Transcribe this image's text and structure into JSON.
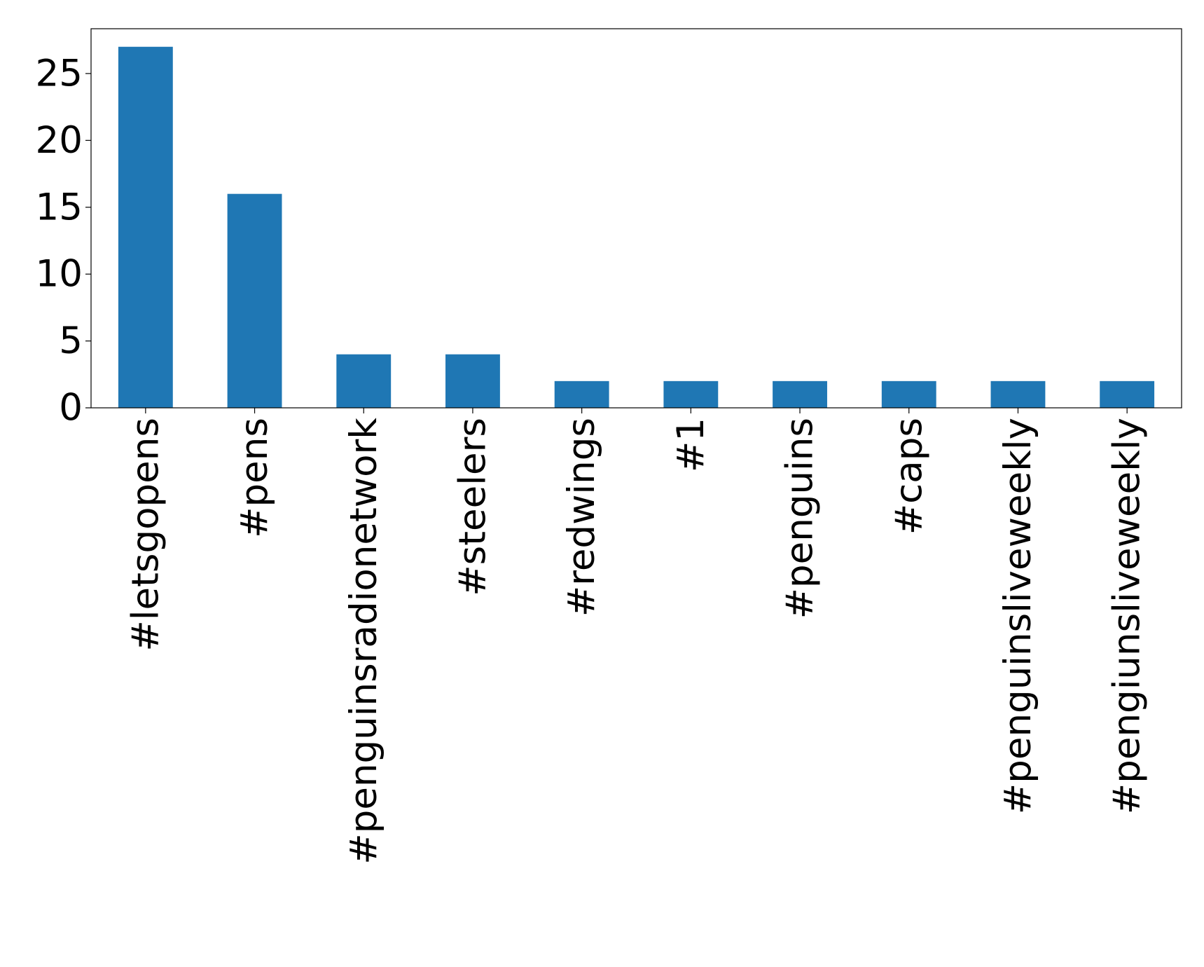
{
  "chart_data": {
    "type": "bar",
    "categories": [
      "#letsgopens",
      "#pens",
      "#penguinsradionetwork",
      "#steelers",
      "#redwings",
      "#1",
      "#penguins",
      "#caps",
      "#penguinsliveweekly",
      "#pengiunsliveweekly"
    ],
    "values": [
      27,
      16,
      4,
      4,
      2,
      2,
      2,
      2,
      2,
      2
    ],
    "color": "#1f77b4",
    "ylim": [
      0,
      28.35
    ],
    "yticks": [
      0,
      5,
      10,
      15,
      20,
      25
    ],
    "grid": false
  }
}
